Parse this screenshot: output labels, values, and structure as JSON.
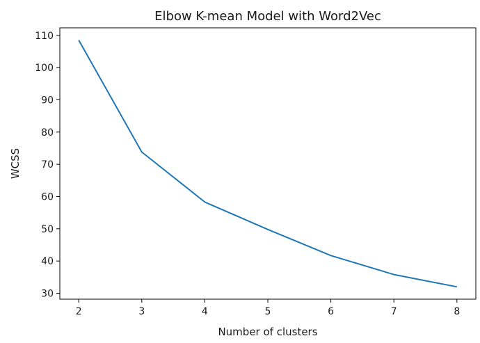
{
  "chart_data": {
    "type": "line",
    "title": "Elbow K-mean Model with Word2Vec",
    "xlabel": "Number of clusters",
    "ylabel": "WCSS",
    "x": [
      2,
      3,
      4,
      5,
      6,
      7,
      8
    ],
    "series": [
      {
        "values": [
          108.5,
          73.8,
          58.3,
          49.8,
          41.7,
          35.8,
          32.0
        ],
        "color": "#1f77b4"
      }
    ],
    "xticks": [
      2,
      3,
      4,
      5,
      6,
      7,
      8
    ],
    "yticks": [
      30,
      40,
      50,
      60,
      70,
      80,
      90,
      100,
      110
    ],
    "xlim": [
      1.7,
      8.3
    ],
    "ylim": [
      28.17,
      112.33
    ],
    "grid": false,
    "legend": "none"
  }
}
